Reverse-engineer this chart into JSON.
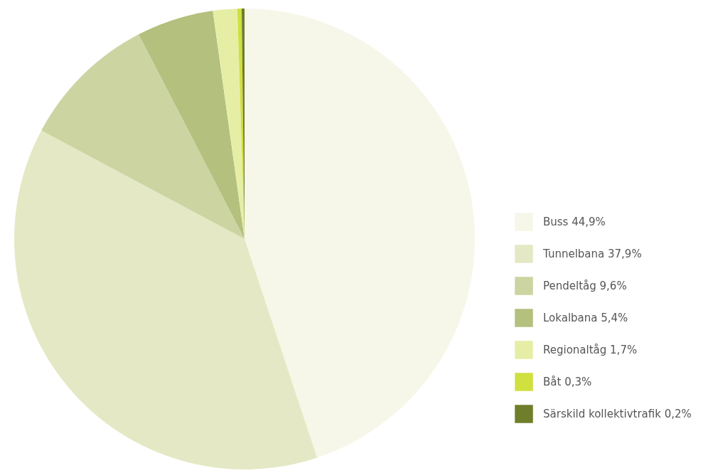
{
  "chart_data": {
    "type": "pie",
    "categories": [
      "Buss",
      "Tunnelbana",
      "Pendeltåg",
      "Lokalbana",
      "Regionaltåg",
      "Båt",
      "Särskild kollektivtrafik"
    ],
    "values": [
      44.9,
      37.9,
      9.6,
      5.4,
      1.7,
      0.3,
      0.2
    ],
    "value_labels": [
      "44,9%",
      "37,9%",
      "9,6%",
      "5,4%",
      "1,7%",
      "0,3%",
      "0,2%"
    ],
    "colors": [
      "#f6f7e9",
      "#e4e8c4",
      "#ccd4a2",
      "#b3c07e",
      "#e6eea6",
      "#cfe03f",
      "#6e7e2a"
    ],
    "legend": "bottom right"
  }
}
